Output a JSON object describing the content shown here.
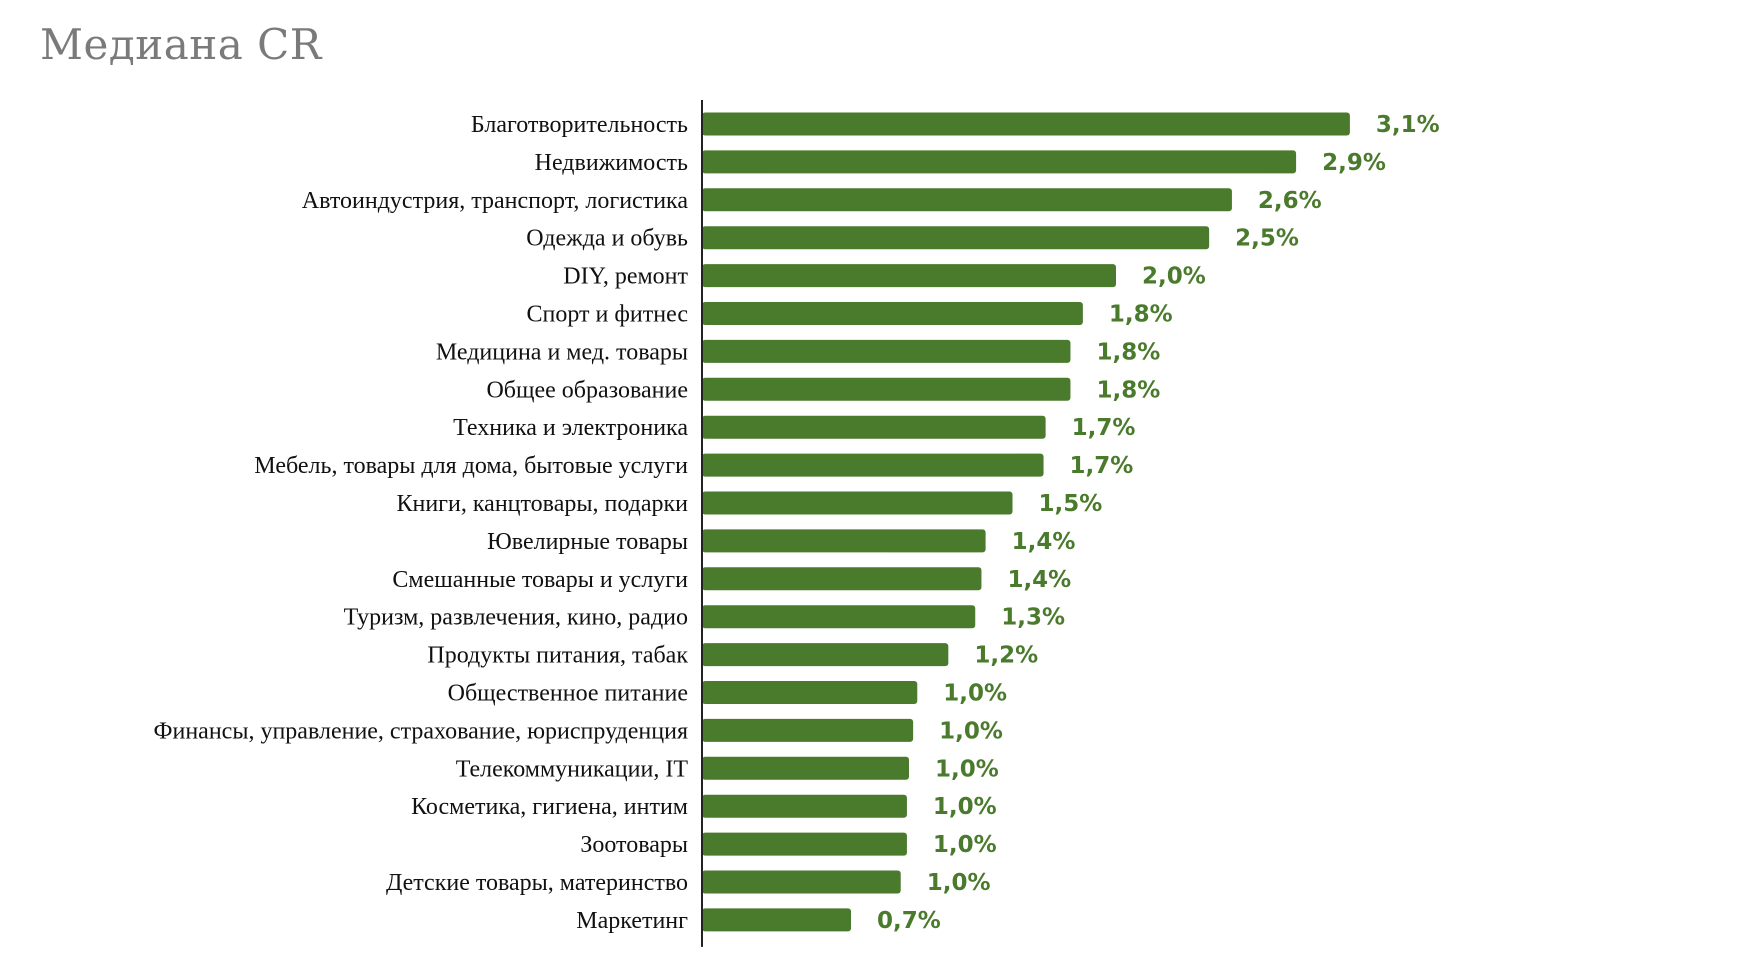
{
  "chart_data": {
    "type": "bar",
    "orientation": "horizontal",
    "title": "Медиана CR",
    "categories": [
      "Благотворительность",
      "Недвижимость",
      "Автоиндустрия, транспорт, логистика",
      "Одежда и обувь",
      "DIY, ремонт",
      "Спорт и фитнес",
      "Медицина и мед. товары",
      "Общее образование",
      "Техника и электроника",
      "Мебель, товары для дома, бытовые услуги",
      "Книги, канцтовары, подарки",
      "Ювелирные товары",
      "Смешанные товары и услуги",
      "Туризм, развлечения, кино, радио",
      "Продукты питания, табак",
      "Общественное питание",
      "Финансы, управление, страхование, юриспруденция",
      "Телекоммуникации, IT",
      "Косметика, гигиена, интим",
      "Зоотовары",
      "Детские товары, материнство",
      "Маркетинг"
    ],
    "values": [
      3.13,
      2.87,
      2.56,
      2.45,
      2.0,
      1.84,
      1.78,
      1.78,
      1.66,
      1.65,
      1.5,
      1.37,
      1.35,
      1.32,
      1.19,
      1.04,
      1.02,
      1.0,
      0.99,
      0.99,
      0.96,
      0.72
    ],
    "value_labels": [
      "3,1%",
      "2,9%",
      "2,6%",
      "2,5%",
      "2,0%",
      "1,8%",
      "1,8%",
      "1,8%",
      "1,7%",
      "1,7%",
      "1,5%",
      "1,4%",
      "1,4%",
      "1,3%",
      "1,2%",
      "1,0%",
      "1,0%",
      "1,0%",
      "1,0%",
      "1,0%",
      "1,0%",
      "0,7%"
    ],
    "unit": "%",
    "xlim": [
      0,
      3.5
    ],
    "grid": false,
    "legend": "none",
    "colors": {
      "bar": "#4a7a2c",
      "value_label": "#4a7a2c",
      "axis": "#222222",
      "title": "#7a7a7a"
    }
  }
}
